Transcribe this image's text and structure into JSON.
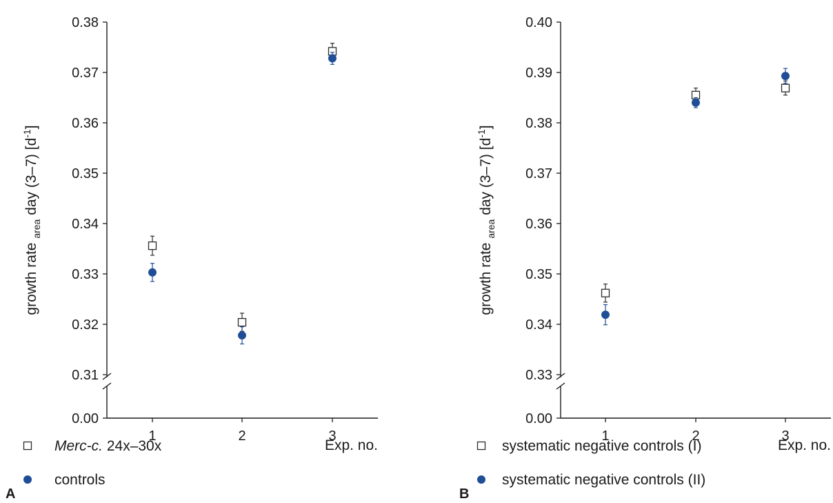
{
  "colors": {
    "controls": "#1f4e96",
    "treated_fill": "#ffffff",
    "treated_stroke": "#2b2b2b",
    "axis": "#1a1a1a"
  },
  "chart_data": [
    {
      "panel": "A",
      "type": "scatter",
      "error_bars": true,
      "ylabel": {
        "main": "growth rate",
        "sub": "area",
        "rest": " day (3–7) [d",
        "sup": "-1",
        "end": "]"
      },
      "xlabel": "Exp. no.",
      "x_ticks": [
        "1",
        "2",
        "3"
      ],
      "y_ticks": [
        "0.00",
        "0.31",
        "0.32",
        "0.33",
        "0.34",
        "0.35",
        "0.36",
        "0.37",
        "0.38"
      ],
      "ylim_upper": [
        0.31,
        0.38
      ],
      "axis_break": true,
      "series": [
        {
          "name": "Merc-c. 24x–30x",
          "marker": "open-square",
          "x": [
            1,
            2,
            3
          ],
          "y": [
            0.3356,
            0.3204,
            0.3742
          ],
          "err": [
            0.0019,
            0.0018,
            0.0016
          ]
        },
        {
          "name": "controls",
          "marker": "filled-circle",
          "x": [
            1,
            2,
            3
          ],
          "y": [
            0.3303,
            0.3178,
            0.3728
          ],
          "err": [
            0.0018,
            0.0017,
            0.0012
          ]
        }
      ],
      "legend": {
        "placement": "bottom-left",
        "items": [
          {
            "italic": "Merc-c.",
            "text": " 24x–30x"
          },
          {
            "italic": "",
            "text": "controls"
          }
        ]
      }
    },
    {
      "panel": "B",
      "type": "scatter",
      "error_bars": true,
      "ylabel": {
        "main": "growth rate",
        "sub": "area",
        "rest": " day (3–7) [d",
        "sup": "-1",
        "end": "]"
      },
      "xlabel": "Exp. no.",
      "x_ticks": [
        "1",
        "2",
        "3"
      ],
      "y_ticks": [
        "0.00",
        "0.33",
        "0.34",
        "0.35",
        "0.36",
        "0.37",
        "0.38",
        "0.39",
        "0.40"
      ],
      "ylim_upper": [
        0.33,
        0.4
      ],
      "axis_break": true,
      "series": [
        {
          "name": "systematic negative controls (I)",
          "marker": "open-square",
          "x": [
            1,
            2,
            3
          ],
          "y": [
            0.3462,
            0.3855,
            0.3869
          ],
          "err": [
            0.0018,
            0.0014,
            0.0014
          ]
        },
        {
          "name": "systematic negative controls (II)",
          "marker": "filled-circle",
          "x": [
            1,
            2,
            3
          ],
          "y": [
            0.3419,
            0.384,
            0.3893
          ],
          "err": [
            0.002,
            0.001,
            0.0015
          ]
        }
      ],
      "legend": {
        "placement": "bottom-left",
        "items": [
          {
            "italic": "",
            "text": "systematic negative controls (I)"
          },
          {
            "italic": "",
            "text": "systematic negative controls (II)"
          }
        ]
      }
    }
  ]
}
